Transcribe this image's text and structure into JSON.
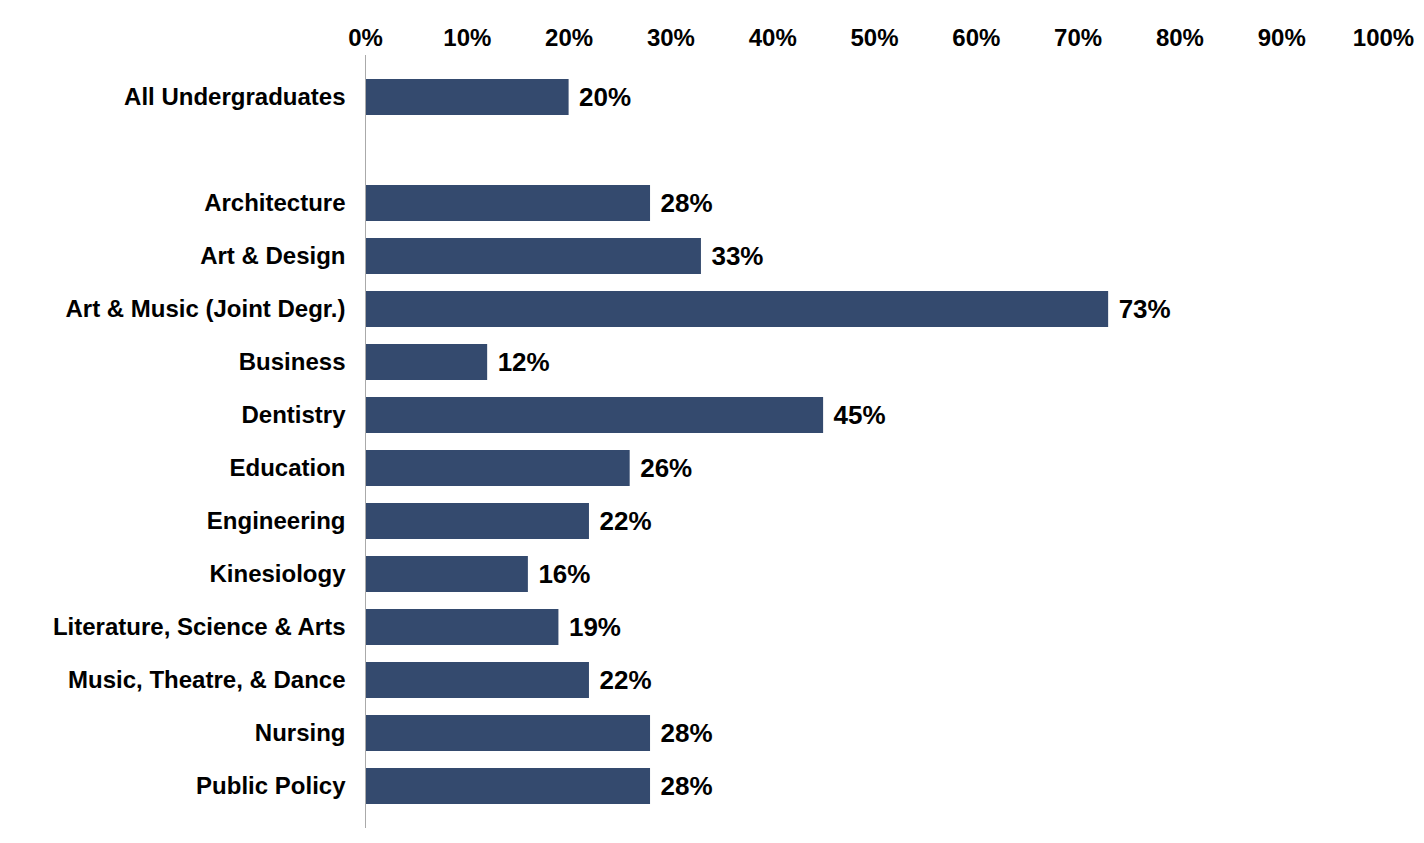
{
  "chart_data": {
    "type": "bar",
    "orientation": "horizontal",
    "categories": [
      "All Undergraduates",
      null,
      "Architecture",
      "Art & Design",
      "Art & Music (Joint Degr.)",
      "Business",
      "Dentistry",
      "Education",
      "Engineering",
      "Kinesiology",
      "Literature, Science & Arts",
      "Music, Theatre, & Dance",
      "Nursing",
      "Public Policy"
    ],
    "values": [
      20,
      null,
      28,
      33,
      73,
      12,
      45,
      26,
      22,
      16,
      19,
      22,
      28,
      28
    ],
    "value_labels": [
      "20%",
      null,
      "28%",
      "33%",
      "73%",
      "12%",
      "45%",
      "26%",
      "22%",
      "16%",
      "19%",
      "22%",
      "28%",
      "28%"
    ],
    "color": "#344a6e",
    "xlim": [
      0,
      100
    ],
    "xticks": [
      {
        "value": 0,
        "label": "0%"
      },
      {
        "value": 10,
        "label": "10%"
      },
      {
        "value": 20,
        "label": "20%"
      },
      {
        "value": 30,
        "label": "30%"
      },
      {
        "value": 40,
        "label": "40%"
      },
      {
        "value": 50,
        "label": "50%"
      },
      {
        "value": 60,
        "label": "60%"
      },
      {
        "value": 70,
        "label": "70%"
      },
      {
        "value": 80,
        "label": "80%"
      },
      {
        "value": 90,
        "label": "90%"
      },
      {
        "value": 100,
        "label": "100%"
      }
    ],
    "grid": false,
    "data_labels": true
  }
}
